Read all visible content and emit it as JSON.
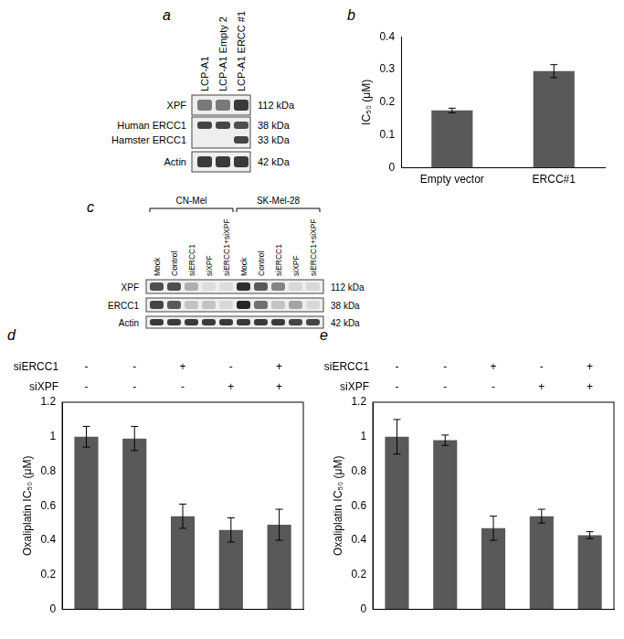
{
  "blots": [
    {
      "panel": "a",
      "lanes": [
        "LCP-A1",
        "LCP-A1 Empty 2",
        "LCP-A1 ERCC #1"
      ],
      "rows": [
        {
          "label": "XPF",
          "kda": "112 kDa"
        },
        {
          "label": "Human ERCC1",
          "kda": "38 kDa"
        },
        {
          "label": "Hamster ERCC1",
          "kda": "33 kDa"
        },
        {
          "label": "Actin",
          "kda": "42 kDa"
        }
      ]
    },
    {
      "panel": "c",
      "groups": [
        {
          "name": "CN-Mel",
          "lanes": [
            "Mock",
            "Control",
            "siERCC1",
            "siXPF",
            "siERCC1+siXPF"
          ]
        },
        {
          "name": "SK-Mel-28",
          "lanes": [
            "Mock",
            "Control",
            "siERCC1",
            "siXPF",
            "siERCC1+siXPF"
          ]
        }
      ],
      "rows": [
        {
          "label": "XPF",
          "kda": "112 kDa"
        },
        {
          "label": "ERCC1",
          "kda": "38 kDa"
        },
        {
          "label": "Actin",
          "kda": "42 kDa"
        }
      ]
    }
  ],
  "chart_data": [
    {
      "panel": "b",
      "type": "bar",
      "categories": [
        "Empty vector",
        "ERCC#1"
      ],
      "values": [
        0.175,
        0.295
      ],
      "errors": [
        0.007,
        0.02
      ],
      "ylabel": "IC₅₀ (μM)",
      "ylim": [
        0,
        0.4
      ],
      "yticks": [
        0,
        0.1,
        0.2,
        0.3,
        0.4
      ],
      "color": "#595959",
      "grid": false
    },
    {
      "panel": "d",
      "type": "bar",
      "categories": [
        null,
        null,
        null,
        null,
        null
      ],
      "conditions": [
        {
          "name": "siERCC1",
          "values": [
            "-",
            "-",
            "+",
            "-",
            "+"
          ]
        },
        {
          "name": "siXPF",
          "values": [
            "-",
            "-",
            "-",
            "+",
            "+"
          ]
        }
      ],
      "values": [
        1.0,
        0.99,
        0.54,
        0.46,
        0.49
      ],
      "errors": [
        0.06,
        0.07,
        0.07,
        0.07,
        0.09
      ],
      "ylabel": "Oxaliplatin IC₅₀ (μM)",
      "ylim": [
        0,
        1.2
      ],
      "yticks": [
        0,
        0.2,
        0.4,
        0.6,
        0.8,
        1,
        1.2
      ],
      "color": "#595959",
      "grid": false
    },
    {
      "panel": "e",
      "type": "bar",
      "categories": [
        null,
        null,
        null,
        null,
        null
      ],
      "conditions": [
        {
          "name": "siERCC1",
          "values": [
            "-",
            "-",
            "+",
            "-",
            "+"
          ]
        },
        {
          "name": "siXPF",
          "values": [
            "-",
            "-",
            "-",
            "+",
            "+"
          ]
        }
      ],
      "values": [
        1.0,
        0.98,
        0.47,
        0.54,
        0.43
      ],
      "errors": [
        0.1,
        0.03,
        0.07,
        0.04,
        0.02
      ],
      "ylabel": "Oxaliplatin IC₅₀ (μM)",
      "ylim": [
        0,
        1.2
      ],
      "yticks": [
        0,
        0.2,
        0.4,
        0.6,
        0.8,
        1,
        1.2
      ],
      "color": "#595959",
      "grid": false
    }
  ]
}
